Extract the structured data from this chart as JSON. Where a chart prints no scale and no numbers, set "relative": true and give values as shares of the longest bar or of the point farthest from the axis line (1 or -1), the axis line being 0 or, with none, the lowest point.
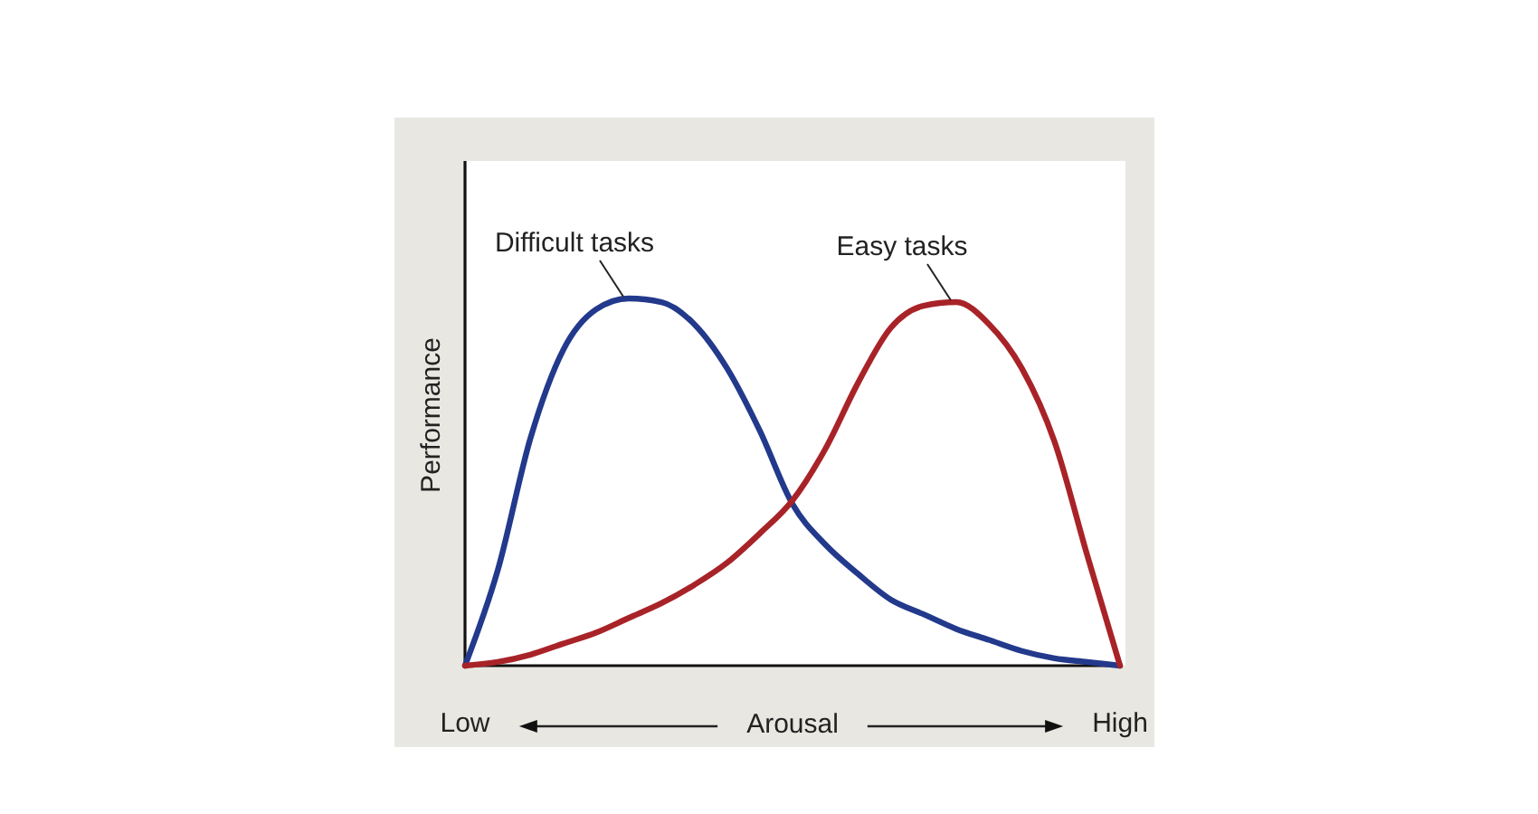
{
  "chart_data": {
    "type": "line",
    "relative": true,
    "xlabel": "Arousal",
    "ylabel": "Performance",
    "line_style": "solid",
    "categories": [
      "Low",
      null,
      null,
      null,
      null,
      null,
      null,
      null,
      null,
      null,
      null,
      null,
      null,
      null,
      null,
      null,
      null,
      null,
      null,
      null,
      "High"
    ],
    "series": [
      {
        "name": "Difficult tasks",
        "color": "#22398c",
        "values": [
          0,
          0.26,
          0.62,
          0.86,
          0.97,
          1,
          0.99,
          0.93,
          0.81,
          0.64,
          0.44,
          0.33,
          0.25,
          0.18,
          0.14,
          0.1,
          0.07,
          0.04,
          0.02,
          0.01,
          0
        ]
      },
      {
        "name": "Easy tasks",
        "color": "#a82328",
        "values": [
          0,
          0.01,
          0.03,
          0.06,
          0.09,
          0.13,
          0.17,
          0.22,
          0.28,
          0.36,
          0.45,
          0.59,
          0.77,
          0.92,
          0.98,
          0.99,
          0.93,
          0.81,
          0.61,
          0.3,
          0
        ]
      }
    ]
  }
}
